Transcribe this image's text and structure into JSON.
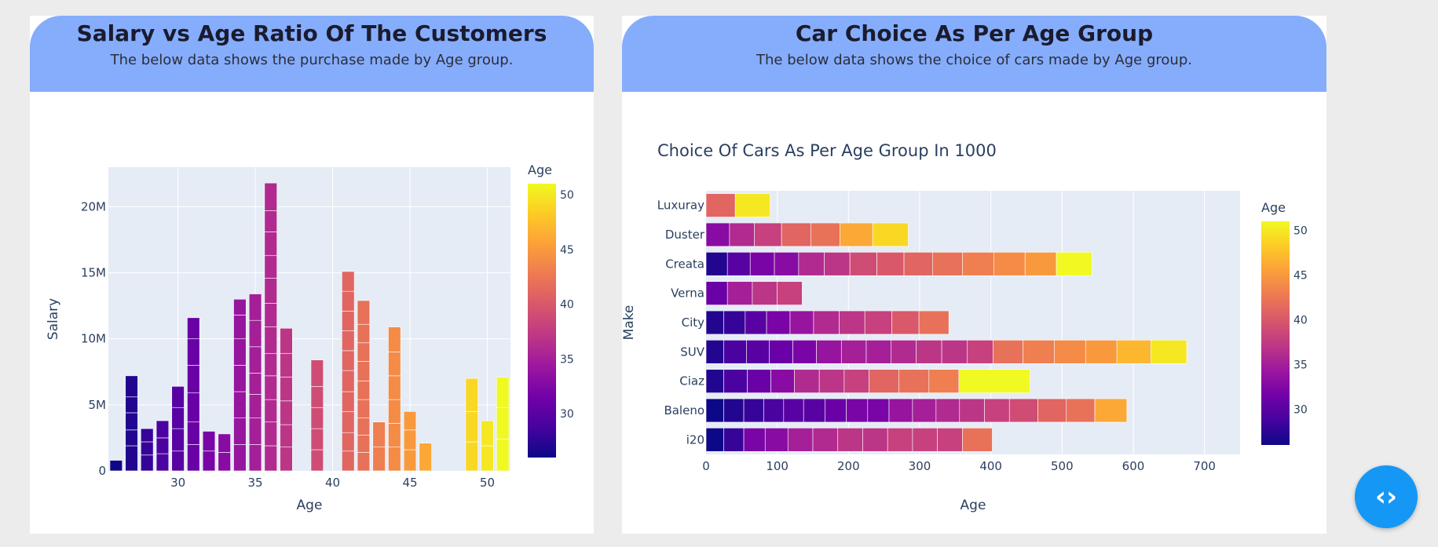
{
  "cards": [
    {
      "title": "Salary vs Age Ratio Of The Customers",
      "subtitle": "The below data shows the purchase made by Age group."
    },
    {
      "title": "Car Choice As Per Age Group",
      "subtitle": "The below data shows the choice of cars made by Age group."
    }
  ],
  "fab": {
    "icon": "code-icon",
    "glyph": "‹›"
  },
  "chart_data": [
    {
      "type": "bar",
      "title": "",
      "xlabel": "Age",
      "ylabel": "Salary",
      "xlim": [
        25.5,
        51.5
      ],
      "ylim": [
        0,
        23000000
      ],
      "x_ticks": [
        30,
        35,
        40,
        45,
        50
      ],
      "y_ticks": [
        0,
        5000000,
        10000000,
        15000000,
        20000000
      ],
      "y_tick_labels": [
        "0",
        "5M",
        "10M",
        "15M",
        "20M"
      ],
      "stacked": true,
      "colorbar": {
        "title": "Age",
        "range": [
          26,
          51
        ],
        "ticks": [
          30,
          35,
          40,
          45,
          50
        ]
      },
      "bars": [
        {
          "x": 26,
          "segments": [
            0.8
          ]
        },
        {
          "x": 27,
          "segments": [
            1.9,
            1.2,
            1.3,
            1.2,
            1.6
          ]
        },
        {
          "x": 28,
          "segments": [
            1.2,
            1.0,
            1.0
          ]
        },
        {
          "x": 29,
          "segments": [
            1.3,
            1.2,
            1.3
          ]
        },
        {
          "x": 30,
          "segments": [
            1.5,
            1.7,
            1.6,
            1.6
          ]
        },
        {
          "x": 31,
          "segments": [
            2.0,
            1.7,
            2.2,
            2.1,
            2.0,
            1.6
          ]
        },
        {
          "x": 32,
          "segments": [
            1.5,
            1.5
          ]
        },
        {
          "x": 33,
          "segments": [
            1.4,
            1.4
          ]
        },
        {
          "x": 34,
          "segments": [
            2.0,
            2.0,
            2.0,
            2.0,
            2.0,
            1.8,
            1.2
          ]
        },
        {
          "x": 35,
          "segments": [
            2.0,
            2.0,
            1.8,
            1.6,
            2.0,
            2.0,
            2.0
          ]
        },
        {
          "x": 36,
          "segments": [
            1.9,
            1.8,
            1.7,
            1.8,
            1.7,
            2.0,
            1.8,
            1.9,
            1.7,
            1.8,
            1.6,
            2.1
          ]
        },
        {
          "x": 37,
          "segments": [
            1.8,
            1.7,
            1.8,
            1.8,
            1.8,
            1.9
          ]
        },
        {
          "x": 39,
          "segments": [
            1.6,
            1.6,
            1.6,
            1.6,
            2.0
          ]
        },
        {
          "x": 41,
          "segments": [
            1.5,
            1.4,
            1.6,
            1.5,
            1.6,
            1.5,
            1.5,
            1.5,
            1.5,
            1.5
          ]
        },
        {
          "x": 42,
          "segments": [
            1.4,
            1.3,
            1.3,
            1.4,
            1.4,
            1.5,
            1.4,
            1.4,
            1.8
          ]
        },
        {
          "x": 43,
          "segments": [
            1.8,
            1.9
          ]
        },
        {
          "x": 44,
          "segments": [
            1.8,
            1.8,
            1.8,
            1.8,
            1.8,
            1.9
          ]
        },
        {
          "x": 45,
          "segments": [
            1.6,
            1.5,
            1.4
          ]
        },
        {
          "x": 46,
          "segments": [
            2.1
          ]
        },
        {
          "x": 49,
          "segments": [
            2.2,
            2.3,
            2.5
          ]
        },
        {
          "x": 50,
          "segments": [
            1.9,
            1.9
          ]
        },
        {
          "x": 51,
          "segments": [
            2.4,
            2.4,
            2.3
          ]
        }
      ]
    },
    {
      "type": "bar",
      "orientation": "horizontal",
      "title": "Choice Of Cars As Per Age Group In 1000",
      "xlabel": "Age",
      "ylabel": "Make",
      "xlim": [
        0,
        750
      ],
      "x_ticks": [
        0,
        100,
        200,
        300,
        400,
        500,
        600,
        700
      ],
      "stacked": true,
      "colorbar": {
        "title": "Age",
        "range": [
          26,
          51
        ],
        "ticks": [
          30,
          35,
          40,
          45,
          50
        ]
      },
      "categories": [
        "i20",
        "Baleno",
        "Ciaz",
        "SUV",
        "City",
        "Verna",
        "Creata",
        "Duster",
        "Luxuray"
      ],
      "segments": [
        [
          {
            "w": 25,
            "age": 26
          },
          {
            "w": 28,
            "age": 28
          },
          {
            "w": 30,
            "age": 32
          },
          {
            "w": 32,
            "age": 33
          },
          {
            "w": 35,
            "age": 35
          },
          {
            "w": 35,
            "age": 36
          },
          {
            "w": 35,
            "age": 37
          },
          {
            "w": 35,
            "age": 37
          },
          {
            "w": 35,
            "age": 38
          },
          {
            "w": 35,
            "age": 38
          },
          {
            "w": 35,
            "age": 38
          },
          {
            "w": 42,
            "age": 42
          }
        ],
        [
          {
            "w": 25,
            "age": 26
          },
          {
            "w": 28,
            "age": 27
          },
          {
            "w": 28,
            "age": 28
          },
          {
            "w": 28,
            "age": 29
          },
          {
            "w": 28,
            "age": 30
          },
          {
            "w": 30,
            "age": 30
          },
          {
            "w": 30,
            "age": 31
          },
          {
            "w": 30,
            "age": 32
          },
          {
            "w": 30,
            "age": 32
          },
          {
            "w": 33,
            "age": 34
          },
          {
            "w": 33,
            "age": 35
          },
          {
            "w": 33,
            "age": 36
          },
          {
            "w": 35,
            "age": 37
          },
          {
            "w": 35,
            "age": 38
          },
          {
            "w": 40,
            "age": 39
          },
          {
            "w": 40,
            "age": 41
          },
          {
            "w": 40,
            "age": 42
          },
          {
            "w": 45,
            "age": 46
          }
        ],
        [
          {
            "w": 25,
            "age": 27
          },
          {
            "w": 33,
            "age": 29
          },
          {
            "w": 33,
            "age": 31
          },
          {
            "w": 33,
            "age": 33
          },
          {
            "w": 35,
            "age": 36
          },
          {
            "w": 35,
            "age": 37
          },
          {
            "w": 35,
            "age": 38
          },
          {
            "w": 42,
            "age": 41
          },
          {
            "w": 42,
            "age": 42
          },
          {
            "w": 42,
            "age": 43
          },
          {
            "w": 100,
            "age": 51
          }
        ],
        [
          {
            "w": 25,
            "age": 27
          },
          {
            "w": 32,
            "age": 29
          },
          {
            "w": 32,
            "age": 30
          },
          {
            "w": 33,
            "age": 31
          },
          {
            "w": 33,
            "age": 32
          },
          {
            "w": 35,
            "age": 34
          },
          {
            "w": 35,
            "age": 35
          },
          {
            "w": 35,
            "age": 35
          },
          {
            "w": 35,
            "age": 36
          },
          {
            "w": 36,
            "age": 37
          },
          {
            "w": 36,
            "age": 37
          },
          {
            "w": 36,
            "age": 38
          },
          {
            "w": 42,
            "age": 42
          },
          {
            "w": 44,
            "age": 43
          },
          {
            "w": 44,
            "age": 44
          },
          {
            "w": 44,
            "age": 45
          },
          {
            "w": 48,
            "age": 47
          },
          {
            "w": 50,
            "age": 50
          }
        ],
        [
          {
            "w": 25,
            "age": 27
          },
          {
            "w": 30,
            "age": 28
          },
          {
            "w": 30,
            "age": 30
          },
          {
            "w": 33,
            "age": 32
          },
          {
            "w": 33,
            "age": 34
          },
          {
            "w": 36,
            "age": 36
          },
          {
            "w": 36,
            "age": 37
          },
          {
            "w": 38,
            "age": 38
          },
          {
            "w": 38,
            "age": 40
          },
          {
            "w": 42,
            "age": 42
          }
        ],
        [
          {
            "w": 30,
            "age": 31
          },
          {
            "w": 35,
            "age": 35
          },
          {
            "w": 35,
            "age": 37
          },
          {
            "w": 35,
            "age": 38
          }
        ],
        [
          {
            "w": 30,
            "age": 27
          },
          {
            "w": 32,
            "age": 30
          },
          {
            "w": 34,
            "age": 32
          },
          {
            "w": 34,
            "age": 33
          },
          {
            "w": 36,
            "age": 36
          },
          {
            "w": 36,
            "age": 37
          },
          {
            "w": 38,
            "age": 39
          },
          {
            "w": 38,
            "age": 40
          },
          {
            "w": 40,
            "age": 41
          },
          {
            "w": 42,
            "age": 42
          },
          {
            "w": 44,
            "age": 43
          },
          {
            "w": 44,
            "age": 44
          },
          {
            "w": 44,
            "age": 45
          },
          {
            "w": 50,
            "age": 51
          }
        ],
        [
          {
            "w": 33,
            "age": 33
          },
          {
            "w": 35,
            "age": 36
          },
          {
            "w": 38,
            "age": 38
          },
          {
            "w": 41,
            "age": 41
          },
          {
            "w": 41,
            "age": 42
          },
          {
            "w": 46,
            "age": 46
          },
          {
            "w": 50,
            "age": 49
          }
        ],
        [
          {
            "w": 41,
            "age": 41
          },
          {
            "w": 49,
            "age": 50
          }
        ]
      ]
    }
  ]
}
